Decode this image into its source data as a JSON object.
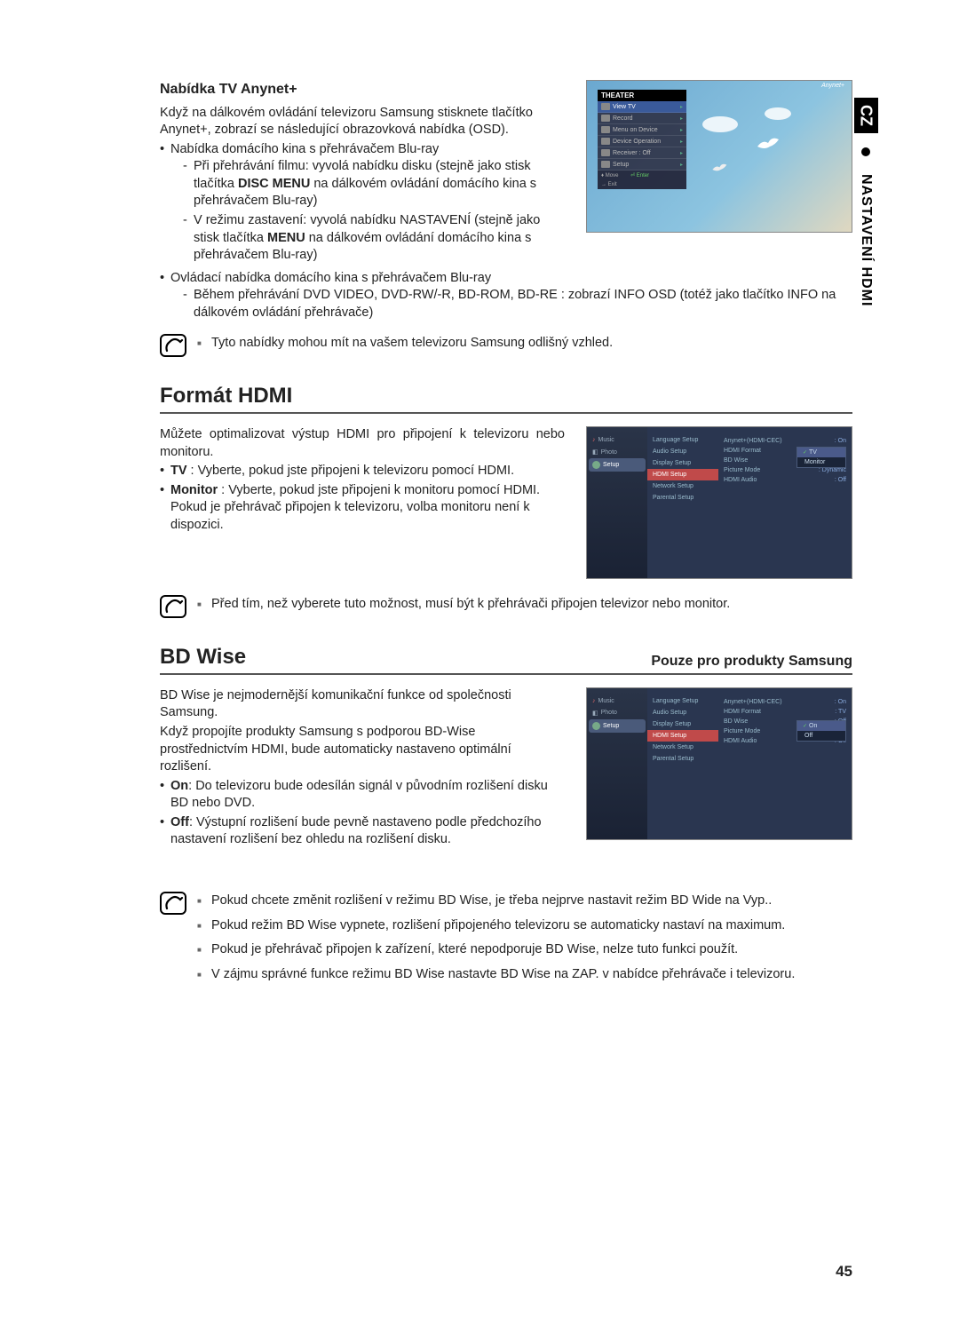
{
  "sideTab": {
    "black": "CZ",
    "rest": "NASTAVENÍ HDMI"
  },
  "anynet": {
    "heading": "Nabídka TV Anynet+",
    "intro": "Když na dálkovém ovládání televizoru Samsung stisknete tlačítko Anynet+, zobrazí se následující obrazovková nabídka (OSD).",
    "b1": "Nabídka domácího kina s přehrávačem Blu-ray",
    "b1d1a": "Při přehrávání filmu: vyvolá nabídku disku (stejně jako stisk tlačítka ",
    "b1d1bold": "DISC MENU",
    "b1d1b": " na dálkovém ovládání domácího kina s přehrávačem Blu-ray)",
    "b1d2a": "V režimu zastavení: vyvolá nabídku NASTAVENÍ (stejně jako stisk tlačítka ",
    "b1d2bold": "MENU",
    "b1d2b": " na dálkovém ovládání domácího kina s přehrávačem Blu-ray)",
    "b2": "Ovládací nabídka domácího kina s přehrávačem Blu-ray",
    "b2d1": "Během přehrávání DVD VIDEO, DVD-RW/-R, BD-ROM, BD-RE : zobrazí INFO OSD (totéž jako tlačítko INFO na dálkovém ovládání přehrávače)",
    "note1": "Tyto nabídky mohou mít na vašem televizoru Samsung odlišný vzhled."
  },
  "theaterMenu": {
    "brand": "Anynet+",
    "header": "THEATER",
    "items": [
      "View TV",
      "Record",
      "Menu on Device",
      "Device Operation",
      "Receiver : Off",
      "Setup"
    ],
    "highlightIndex": 0,
    "footerMove": "Move",
    "footerEnter": "Enter",
    "footerExit": "Exit"
  },
  "hdmiFormat": {
    "title": "Formát HDMI",
    "intro": "Můžete optimalizovat výstup HDMI pro připojení k televizoru nebo monitoru.",
    "b1bold": "TV",
    "b1": " : Vyberte, pokud jste připojeni k televizoru pomocí HDMI.",
    "b2bold": "Monitor",
    "b2": " : Vyberte, pokud jste připojeni k monitoru pomocí HDMI.",
    "b2extra": "Pokud je přehrávač připojen k televizoru, volba monitoru není k dispozici.",
    "note": "Před tím, než vyberete tuto možnost, musí být k přehrávači připojen televizor nebo monitor."
  },
  "setupCommon": {
    "sidebar": {
      "music": "Music",
      "photo": "Photo",
      "setup": "Setup"
    },
    "col2": [
      "Language Setup",
      "Audio Setup",
      "Display Setup",
      "HDMI Setup",
      "Network Setup",
      "Parental Setup"
    ],
    "col2hlIndex": 3,
    "rows": [
      {
        "label": "Anynet+(HDMI-CEC)",
        "val": ": On"
      },
      {
        "label": "HDMI Format",
        "val": ": TV"
      },
      {
        "label": "BD Wise",
        "val": ": Off"
      },
      {
        "label": "Picture Mode",
        "val": ": Dynamic"
      },
      {
        "label": "HDMI Audio",
        "val": ": Off"
      }
    ]
  },
  "setup1": {
    "dropdownTop": 22,
    "options": [
      "TV",
      "Monitor"
    ],
    "selIndex": 0
  },
  "setup2": {
    "dropdownTop": 36,
    "options": [
      "On",
      "Off"
    ],
    "selIndex": 0
  },
  "bdwise": {
    "title": "BD Wise",
    "subtitle": "Pouze pro produkty Samsung",
    "p1": "BD Wise je nejmodernější komunikační funkce od společnosti Samsung.",
    "p2": "Když propojíte produkty Samsung s podporou BD-Wise prostřednictvím HDMI, bude automaticky nastaveno optimální rozlišení.",
    "b1bold": "On",
    "b1": ": Do televizoru bude odesílán signál v původním rozlišení disku BD nebo DVD.",
    "b2bold": "Off",
    "b2": ": Výstupní rozlišení bude pevně nastaveno podle předchozího nastavení rozlišení bez ohledu na rozlišení disku.",
    "notes": [
      "Pokud chcete změnit rozlišení v režimu BD Wise, je třeba nejprve nastavit režim BD Wide na Vyp..",
      "Pokud režim BD Wise vypnete, rozlišení připojeného televizoru se automaticky nastaví na maximum.",
      "Pokud je přehrávač připojen k zařízení, které nepodporuje BD Wise, nelze tuto funkci použít.",
      "V zájmu správné funkce režimu BD Wise nastavte BD Wise na ZAP. v nabídce přehrávače i televizoru."
    ]
  },
  "pageNum": "45"
}
